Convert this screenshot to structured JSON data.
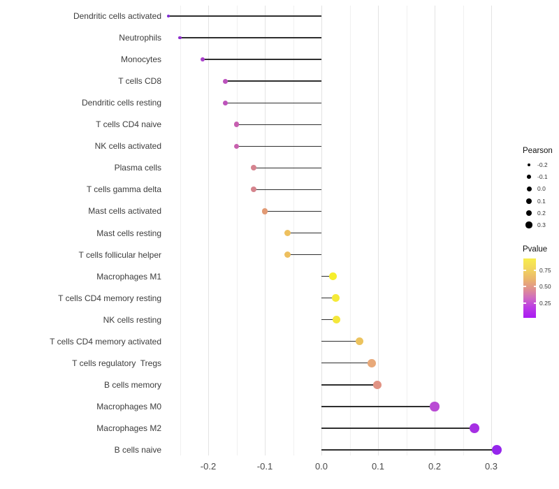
{
  "chart_data": {
    "type": "scatter",
    "subtype": "lollipop",
    "title": "",
    "xlabel": "",
    "ylabel": "",
    "x_ticks": [
      "-0.2",
      "-0.1",
      "0.0",
      "0.1",
      "0.2",
      "0.3"
    ],
    "x_tick_values": [
      -0.2,
      -0.1,
      0.0,
      0.1,
      0.2,
      0.3
    ],
    "xlim": [
      -0.3,
      0.34
    ],
    "grid": "on",
    "grid_minor_step": 0.05,
    "legend_position": "right",
    "points": [
      {
        "label": "Dendritic cells activated",
        "pearson": -0.27,
        "pvalue": 0.08,
        "color": "#7e2bd1"
      },
      {
        "label": "Neutrophils",
        "pearson": -0.25,
        "pvalue": 0.1,
        "color": "#8e2fcd"
      },
      {
        "label": "Monocytes",
        "pearson": -0.21,
        "pvalue": 0.17,
        "color": "#a840c9"
      },
      {
        "label": "T cells CD8",
        "pearson": -0.17,
        "pvalue": 0.27,
        "color": "#bc52bd"
      },
      {
        "label": "Dendritic cells resting",
        "pearson": -0.17,
        "pvalue": 0.28,
        "color": "#bd53bb"
      },
      {
        "label": "T cells CD4 naive",
        "pearson": -0.15,
        "pvalue": 0.33,
        "color": "#c75fb0"
      },
      {
        "label": "NK cells activated",
        "pearson": -0.15,
        "pvalue": 0.34,
        "color": "#c860ae"
      },
      {
        "label": "Plasma cells",
        "pearson": -0.12,
        "pvalue": 0.45,
        "color": "#d5838f"
      },
      {
        "label": "T cells gamma delta",
        "pearson": -0.12,
        "pvalue": 0.46,
        "color": "#d5848d"
      },
      {
        "label": "Mast cells activated",
        "pearson": -0.1,
        "pvalue": 0.53,
        "color": "#e29a74"
      },
      {
        "label": "Mast cells resting",
        "pearson": -0.06,
        "pvalue": 0.7,
        "color": "#eec05e"
      },
      {
        "label": "T cells follicular helper",
        "pearson": -0.06,
        "pvalue": 0.71,
        "color": "#edbf5f"
      },
      {
        "label": "Macrophages M1",
        "pearson": 0.02,
        "pvalue": 0.88,
        "color": "#f6ee2c"
      },
      {
        "label": "T cells CD4 memory resting",
        "pearson": 0.025,
        "pvalue": 0.86,
        "color": "#f5ea38"
      },
      {
        "label": "NK cells resting",
        "pearson": 0.027,
        "pvalue": 0.84,
        "color": "#f4e73b"
      },
      {
        "label": "T cells CD4 memory activated",
        "pearson": 0.067,
        "pvalue": 0.72,
        "color": "#ecc35e"
      },
      {
        "label": "T cells regulatory  Tregs",
        "pearson": 0.089,
        "pvalue": 0.62,
        "color": "#e8a979"
      },
      {
        "label": "B cells memory",
        "pearson": 0.099,
        "pvalue": 0.58,
        "color": "#e19384"
      },
      {
        "label": "Macrophages M0",
        "pearson": 0.2,
        "pvalue": 0.16,
        "color": "#b94bd4"
      },
      {
        "label": "Macrophages M2",
        "pearson": 0.27,
        "pvalue": 0.08,
        "color": "#a630e3"
      },
      {
        "label": "B cells naive",
        "pearson": 0.31,
        "pvalue": 0.05,
        "color": "#9526ec"
      }
    ],
    "legend_size": {
      "title": "Pearson",
      "labels": [
        "-0.2",
        "-0.1",
        "0.0",
        "0.1",
        "0.2",
        "0.3"
      ]
    },
    "legend_color": {
      "title": "Pvalue",
      "tick_labels": [
        "0.75",
        "0.50",
        "0.25"
      ],
      "top_color": "#f8ed4c",
      "bottom_color": "#a91af2"
    }
  }
}
